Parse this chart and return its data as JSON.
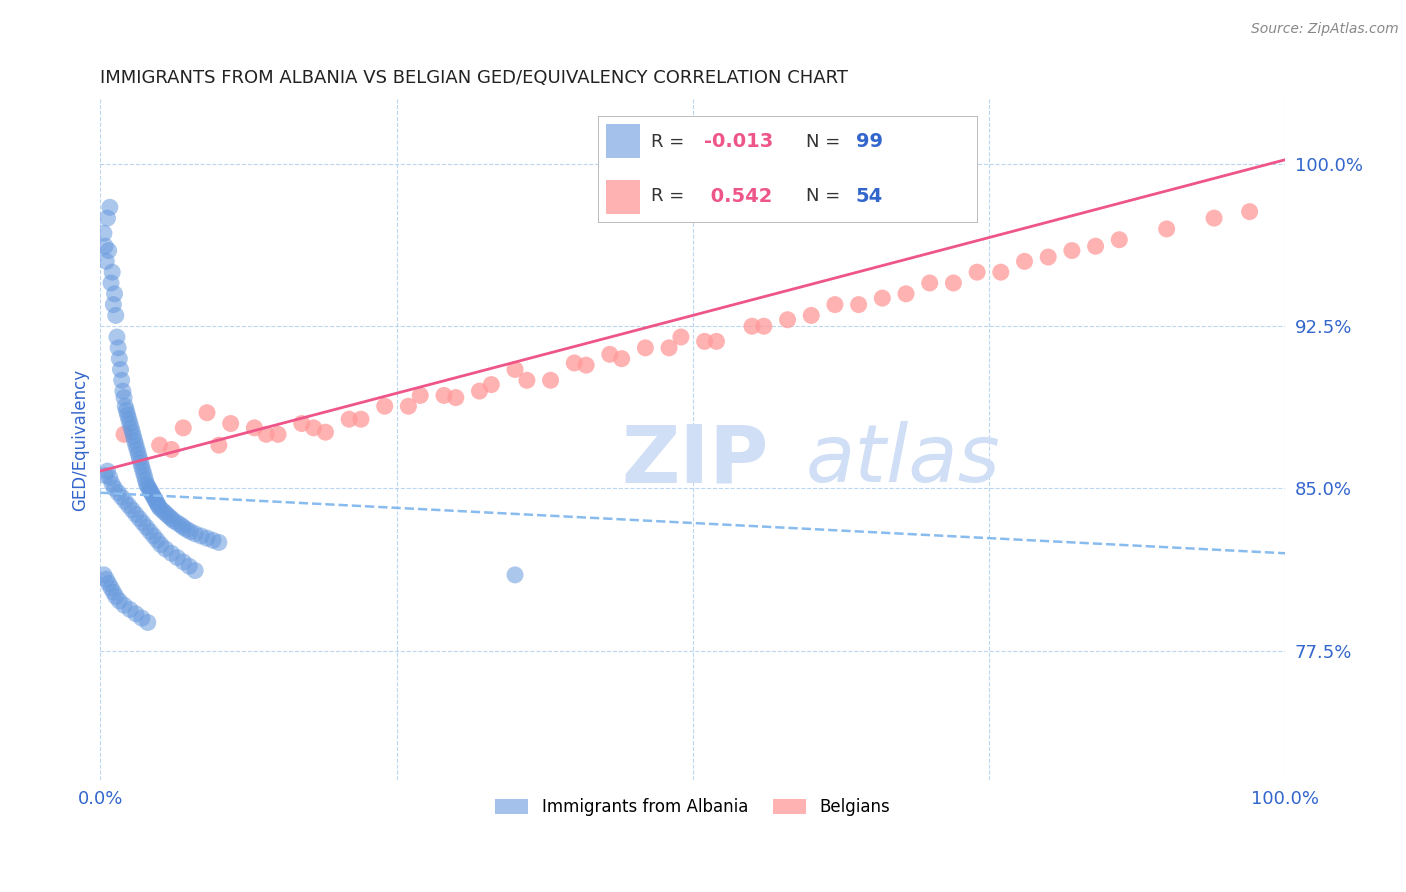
{
  "title": "IMMIGRANTS FROM ALBANIA VS BELGIAN GED/EQUIVALENCY CORRELATION CHART",
  "source_text": "Source: ZipAtlas.com",
  "ylabel": "GED/Equivalency",
  "xlim": [
    0.0,
    1.0
  ],
  "ylim": [
    0.715,
    1.03
  ],
  "yticks": [
    0.775,
    0.85,
    0.925,
    1.0
  ],
  "ytick_labels": [
    "77.5%",
    "85.0%",
    "92.5%",
    "100.0%"
  ],
  "blue_color": "#6699DD",
  "pink_color": "#FF9999",
  "pink_line_color": "#EE5588",
  "blue_line_color": "#88BBEE",
  "title_color": "#222222",
  "tick_label_color": "#3366CC",
  "grid_color": "#AACCEE",
  "watermark_color": "#D0DFF5",
  "legend_r_color": "#EE5588",
  "legend_n_color": "#3366CC",
  "blue_scatter_x": [
    0.003,
    0.004,
    0.005,
    0.006,
    0.007,
    0.008,
    0.009,
    0.01,
    0.011,
    0.012,
    0.013,
    0.014,
    0.015,
    0.016,
    0.017,
    0.018,
    0.019,
    0.02,
    0.021,
    0.022,
    0.023,
    0.024,
    0.025,
    0.026,
    0.027,
    0.028,
    0.029,
    0.03,
    0.031,
    0.032,
    0.033,
    0.034,
    0.035,
    0.036,
    0.037,
    0.038,
    0.039,
    0.04,
    0.041,
    0.042,
    0.043,
    0.044,
    0.045,
    0.046,
    0.047,
    0.048,
    0.049,
    0.05,
    0.052,
    0.054,
    0.056,
    0.058,
    0.06,
    0.062,
    0.065,
    0.068,
    0.07,
    0.073,
    0.076,
    0.08,
    0.085,
    0.09,
    0.095,
    0.1,
    0.004,
    0.006,
    0.008,
    0.01,
    0.012,
    0.015,
    0.018,
    0.021,
    0.024,
    0.027,
    0.03,
    0.033,
    0.036,
    0.039,
    0.042,
    0.045,
    0.048,
    0.051,
    0.055,
    0.06,
    0.065,
    0.07,
    0.075,
    0.08,
    0.003,
    0.005,
    0.007,
    0.009,
    0.011,
    0.013,
    0.016,
    0.02,
    0.025,
    0.03,
    0.035,
    0.04,
    0.35
  ],
  "blue_scatter_y": [
    0.968,
    0.962,
    0.955,
    0.975,
    0.96,
    0.98,
    0.945,
    0.95,
    0.935,
    0.94,
    0.93,
    0.92,
    0.915,
    0.91,
    0.905,
    0.9,
    0.895,
    0.892,
    0.888,
    0.886,
    0.884,
    0.882,
    0.88,
    0.878,
    0.876,
    0.874,
    0.872,
    0.87,
    0.868,
    0.866,
    0.864,
    0.862,
    0.86,
    0.858,
    0.856,
    0.854,
    0.852,
    0.851,
    0.85,
    0.849,
    0.848,
    0.847,
    0.846,
    0.845,
    0.844,
    0.843,
    0.842,
    0.841,
    0.84,
    0.839,
    0.838,
    0.837,
    0.836,
    0.835,
    0.834,
    0.833,
    0.832,
    0.831,
    0.83,
    0.829,
    0.828,
    0.827,
    0.826,
    0.825,
    0.856,
    0.858,
    0.855,
    0.852,
    0.85,
    0.848,
    0.846,
    0.844,
    0.842,
    0.84,
    0.838,
    0.836,
    0.834,
    0.832,
    0.83,
    0.828,
    0.826,
    0.824,
    0.822,
    0.82,
    0.818,
    0.816,
    0.814,
    0.812,
    0.81,
    0.808,
    0.806,
    0.804,
    0.802,
    0.8,
    0.798,
    0.796,
    0.794,
    0.792,
    0.79,
    0.788,
    0.81
  ],
  "pink_scatter_x": [
    0.02,
    0.05,
    0.07,
    0.09,
    0.11,
    0.13,
    0.15,
    0.17,
    0.19,
    0.21,
    0.24,
    0.27,
    0.3,
    0.32,
    0.35,
    0.38,
    0.4,
    0.43,
    0.46,
    0.49,
    0.52,
    0.55,
    0.58,
    0.62,
    0.66,
    0.7,
    0.74,
    0.78,
    0.82,
    0.86,
    0.9,
    0.94,
    0.97,
    0.06,
    0.1,
    0.14,
    0.18,
    0.22,
    0.26,
    0.29,
    0.33,
    0.36,
    0.41,
    0.44,
    0.48,
    0.51,
    0.56,
    0.6,
    0.64,
    0.68,
    0.72,
    0.76,
    0.8,
    0.84
  ],
  "pink_scatter_y": [
    0.875,
    0.87,
    0.878,
    0.885,
    0.88,
    0.878,
    0.875,
    0.88,
    0.876,
    0.882,
    0.888,
    0.893,
    0.892,
    0.895,
    0.905,
    0.9,
    0.908,
    0.912,
    0.915,
    0.92,
    0.918,
    0.925,
    0.928,
    0.935,
    0.938,
    0.945,
    0.95,
    0.955,
    0.96,
    0.965,
    0.97,
    0.975,
    0.978,
    0.868,
    0.87,
    0.875,
    0.878,
    0.882,
    0.888,
    0.893,
    0.898,
    0.9,
    0.907,
    0.91,
    0.915,
    0.918,
    0.925,
    0.93,
    0.935,
    0.94,
    0.945,
    0.95,
    0.957,
    0.962
  ],
  "blue_trend_start_y": 0.848,
  "blue_trend_end_y": 0.82,
  "pink_trend_start_y": 0.858,
  "pink_trend_end_y": 1.002
}
